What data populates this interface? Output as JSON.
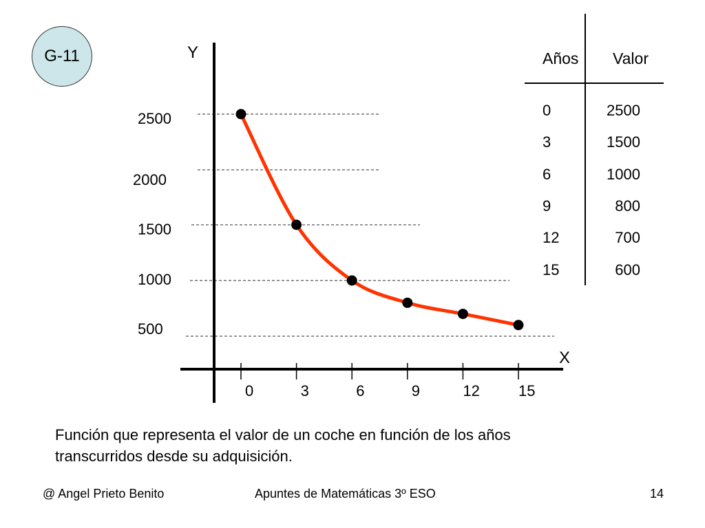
{
  "badge": "G-11",
  "chart_data": {
    "type": "scatter",
    "x": [
      0,
      3,
      6,
      9,
      12,
      15
    ],
    "y": [
      2500,
      1500,
      1000,
      800,
      700,
      600
    ],
    "x_ticks": [
      "0",
      "3",
      "6",
      "9",
      "12",
      "15"
    ],
    "y_ticks": [
      {
        "value": 500,
        "label": "500"
      },
      {
        "value": 1000,
        "label": "1000"
      },
      {
        "value": 1500,
        "label": "1500"
      },
      {
        "value": 2000,
        "label": "2000"
      },
      {
        "value": 2500,
        "label": "2500"
      }
    ],
    "xlabel": "X",
    "ylabel": "Y",
    "curve_color": "#ff3300",
    "point_color": "#000000",
    "gridlines": "dashed horizontal"
  },
  "table": {
    "headers": [
      "Años",
      "Valor"
    ],
    "rows": [
      [
        "0",
        "2500"
      ],
      [
        "3",
        "1500"
      ],
      [
        "6",
        "1000"
      ],
      [
        "9",
        "800"
      ],
      [
        "12",
        "700"
      ],
      [
        "15",
        "600"
      ]
    ]
  },
  "caption": {
    "line1": "Función que representa el valor de un coche en función de los años",
    "line2": "transcurridos desde su adquisición."
  },
  "footer": {
    "left": "@ Angel Prieto Benito",
    "center": "Apuntes de Matemáticas 3º ESO",
    "right": "14"
  }
}
